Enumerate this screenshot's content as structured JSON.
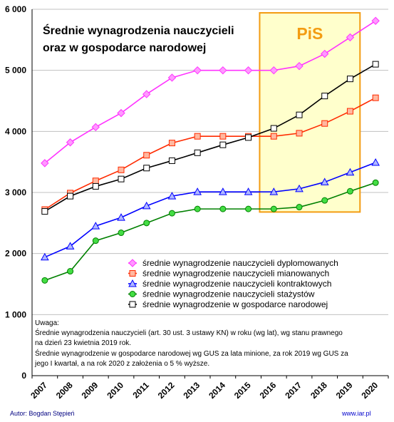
{
  "chart_data": {
    "type": "line",
    "title": [
      "Średnie wynagrodzenia nauczycieli",
      "oraz w gospodarce narodowej"
    ],
    "categories": [
      "2007",
      "2008",
      "2009",
      "2010",
      "2011",
      "2012",
      "2013",
      "2014",
      "2015",
      "2016",
      "2017",
      "2018",
      "2019",
      "2020"
    ],
    "ylim": [
      0,
      6000
    ],
    "yticks": [
      0,
      1000,
      2000,
      3000,
      4000,
      5000,
      6000
    ],
    "ytick_labels": [
      "0",
      "1 000",
      "2 000",
      "3 000",
      "4 000",
      "5 000",
      "6 000"
    ],
    "grid": "horizontal",
    "legend_position": "bottom-right",
    "series": [
      {
        "name": "średnie wynagrodzenie nauczycieli dyplomowanych",
        "color": "#ff33ff",
        "marker": "diamond",
        "values": [
          3480,
          3820,
          4070,
          4300,
          4610,
          4880,
          5000,
          5000,
          5000,
          5000,
          5070,
          5270,
          5540,
          5810
        ]
      },
      {
        "name": "średnie wynagrodzenie nauczycieli mianowanych",
        "color": "#ff2a00",
        "marker": "square",
        "values": [
          2720,
          2990,
          3190,
          3370,
          3610,
          3810,
          3920,
          3920,
          3920,
          3920,
          3970,
          4130,
          4330,
          4550
        ]
      },
      {
        "name": "średnie wynagrodzenie nauczycieli kontraktowych",
        "color": "#0000ff",
        "marker": "triangle",
        "values": [
          1940,
          2120,
          2450,
          2590,
          2780,
          2940,
          3010,
          3010,
          3010,
          3010,
          3060,
          3170,
          3330,
          3490
        ]
      },
      {
        "name": "średnie wynagrodzenie nauczycieli stażystów",
        "color": "#008000",
        "marker": "circle",
        "values": [
          1560,
          1710,
          2210,
          2340,
          2500,
          2660,
          2730,
          2730,
          2730,
          2730,
          2760,
          2870,
          3020,
          3160
        ]
      },
      {
        "name": "średnie wynagrodzenie w gospodarce narodowej",
        "color": "#000000",
        "marker": "square-open",
        "values": [
          2690,
          2940,
          3100,
          3220,
          3400,
          3520,
          3650,
          3780,
          3900,
          4050,
          4270,
          4580,
          4860,
          5100
        ]
      }
    ],
    "annotation": {
      "label": "PiS",
      "from": "2016",
      "to": "2019",
      "fill": "#ffffcc",
      "border": "#f39c12"
    }
  },
  "notes": [
    "Uwaga:",
    "Średnie wynagrodzenia nauczycieli (art. 30 ust. 3 ustawy KN) w roku (wg lat), wg stanu prawnego",
    "na dzień 23 kwietnia 2019 rok.",
    "Średnie wynagrodzenie w gospodarce narodowej wg GUS za lata minione, za rok 2019 wg GUS za",
    "jego I kwartał, a na rok 2020 z założenia o 5 % wyższe."
  ],
  "footer": {
    "author": "Autor: Bogdan Stępień",
    "site": "www.iar.pl"
  }
}
